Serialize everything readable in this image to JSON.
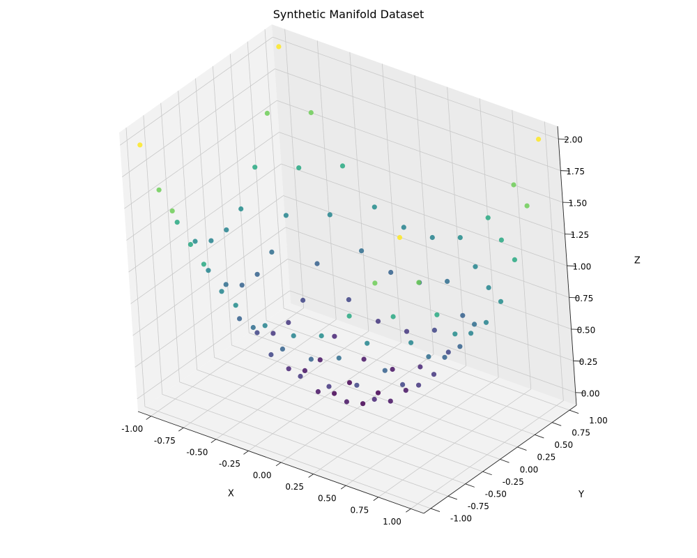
{
  "chart_data": {
    "type": "scatter",
    "projection": "3d",
    "title": "Synthetic Manifold Dataset",
    "xlabel": "X",
    "ylabel": "Y",
    "zlabel": "Z",
    "xlim": [
      -1.1,
      1.1
    ],
    "ylim": [
      -1.1,
      1.1
    ],
    "zlim": [
      -0.1,
      2.1
    ],
    "x_ticks": [
      "-1.00",
      "-0.75",
      "-0.50",
      "-0.25",
      "0.00",
      "0.25",
      "0.50",
      "0.75",
      "1.00"
    ],
    "y_ticks": [
      "-1.00",
      "-0.75",
      "-0.50",
      "-0.25",
      "0.00",
      "0.25",
      "0.50",
      "0.75",
      "1.00"
    ],
    "z_ticks": [
      "0.00",
      "0.25",
      "0.50",
      "0.75",
      "1.00",
      "1.25",
      "1.50",
      "1.75",
      "2.00"
    ],
    "grid": true,
    "colormap": "viridis",
    "color_by": "z",
    "points_xyz": [
      [
        -1.0,
        -1.0,
        2.0
      ],
      [
        -0.78,
        -1.0,
        1.56
      ],
      [
        -0.56,
        -1.0,
        1.22
      ],
      [
        -0.33,
        -1.0,
        0.98
      ],
      [
        -0.11,
        -1.0,
        0.9
      ],
      [
        0.11,
        -1.0,
        0.9
      ],
      [
        0.33,
        -1.0,
        0.98
      ],
      [
        0.56,
        -1.0,
        1.22
      ],
      [
        0.78,
        -1.0,
        1.56
      ],
      [
        1.0,
        -1.0,
        2.0
      ],
      [
        -1.0,
        -0.78,
        1.56
      ],
      [
        -0.78,
        -0.78,
        1.21
      ],
      [
        -0.56,
        -0.78,
        0.92
      ],
      [
        -0.33,
        -0.78,
        0.72
      ],
      [
        -0.11,
        -0.78,
        0.63
      ],
      [
        0.11,
        -0.78,
        0.63
      ],
      [
        0.33,
        -0.78,
        0.72
      ],
      [
        0.56,
        -0.78,
        0.92
      ],
      [
        0.78,
        -0.78,
        1.21
      ],
      [
        1.0,
        -0.78,
        1.56
      ],
      [
        -1.0,
        -0.56,
        1.22
      ],
      [
        -0.78,
        -0.56,
        0.92
      ],
      [
        -0.56,
        -0.56,
        0.62
      ],
      [
        -0.33,
        -0.56,
        0.42
      ],
      [
        -0.11,
        -0.56,
        0.33
      ],
      [
        0.11,
        -0.56,
        0.33
      ],
      [
        0.33,
        -0.56,
        0.42
      ],
      [
        0.56,
        -0.56,
        0.62
      ],
      [
        0.78,
        -0.56,
        0.92
      ],
      [
        1.0,
        -0.56,
        1.22
      ],
      [
        -1.0,
        -0.33,
        0.98
      ],
      [
        -0.78,
        -0.33,
        0.72
      ],
      [
        -0.56,
        -0.33,
        0.42
      ],
      [
        -0.33,
        -0.33,
        0.22
      ],
      [
        -0.11,
        -0.33,
        0.12
      ],
      [
        0.11,
        -0.33,
        0.12
      ],
      [
        0.33,
        -0.33,
        0.22
      ],
      [
        0.56,
        -0.33,
        0.42
      ],
      [
        0.78,
        -0.33,
        0.72
      ],
      [
        1.0,
        -0.33,
        0.98
      ],
      [
        -1.0,
        -0.11,
        0.9
      ],
      [
        -0.78,
        -0.11,
        0.63
      ],
      [
        -0.56,
        -0.11,
        0.33
      ],
      [
        -0.33,
        -0.11,
        0.12
      ],
      [
        -0.11,
        -0.11,
        0.02
      ],
      [
        0.11,
        -0.11,
        0.02
      ],
      [
        0.33,
        -0.11,
        0.12
      ],
      [
        0.56,
        -0.11,
        0.33
      ],
      [
        0.78,
        -0.11,
        0.63
      ],
      [
        1.0,
        -0.11,
        0.9
      ],
      [
        -1.0,
        0.11,
        0.9
      ],
      [
        -0.78,
        0.11,
        0.63
      ],
      [
        -0.56,
        0.11,
        0.33
      ],
      [
        -0.33,
        0.11,
        0.12
      ],
      [
        -0.11,
        0.11,
        0.02
      ],
      [
        0.11,
        0.11,
        0.02
      ],
      [
        0.33,
        0.11,
        0.12
      ],
      [
        0.56,
        0.11,
        0.33
      ],
      [
        0.78,
        0.11,
        0.63
      ],
      [
        1.0,
        0.11,
        0.9
      ],
      [
        -1.0,
        0.33,
        0.98
      ],
      [
        -0.78,
        0.33,
        0.72
      ],
      [
        -0.56,
        0.33,
        0.42
      ],
      [
        -0.33,
        0.33,
        0.22
      ],
      [
        -0.11,
        0.33,
        0.12
      ],
      [
        0.11,
        0.33,
        0.12
      ],
      [
        0.33,
        0.33,
        0.22
      ],
      [
        0.56,
        0.33,
        0.42
      ],
      [
        0.78,
        0.33,
        0.72
      ],
      [
        1.0,
        0.33,
        0.98
      ],
      [
        -1.0,
        0.56,
        1.22
      ],
      [
        -0.78,
        0.56,
        0.92
      ],
      [
        -0.56,
        0.56,
        0.62
      ],
      [
        -0.33,
        0.56,
        0.42
      ],
      [
        -0.11,
        0.56,
        0.33
      ],
      [
        0.11,
        0.56,
        0.33
      ],
      [
        0.33,
        0.56,
        0.42
      ],
      [
        0.56,
        0.56,
        0.62
      ],
      [
        0.78,
        0.56,
        0.92
      ],
      [
        1.0,
        0.56,
        1.22
      ],
      [
        -1.0,
        0.78,
        1.56
      ],
      [
        -0.78,
        0.78,
        1.21
      ],
      [
        -0.56,
        0.78,
        0.92
      ],
      [
        -0.33,
        0.78,
        0.72
      ],
      [
        -0.11,
        0.78,
        0.63
      ],
      [
        0.11,
        0.78,
        0.63
      ],
      [
        0.33,
        0.78,
        0.72
      ],
      [
        0.56,
        0.78,
        0.92
      ],
      [
        0.78,
        0.78,
        1.21
      ],
      [
        1.0,
        0.78,
        1.56
      ],
      [
        -1.0,
        1.0,
        2.0
      ],
      [
        -0.78,
        1.0,
        1.56
      ],
      [
        -0.56,
        1.0,
        1.22
      ],
      [
        -0.33,
        1.0,
        0.98
      ],
      [
        -0.11,
        1.0,
        0.9
      ],
      [
        0.11,
        1.0,
        0.9
      ],
      [
        0.33,
        1.0,
        0.98
      ],
      [
        0.56,
        1.0,
        1.22
      ],
      [
        0.78,
        1.0,
        1.56
      ],
      [
        1.0,
        1.0,
        2.0
      ]
    ]
  }
}
